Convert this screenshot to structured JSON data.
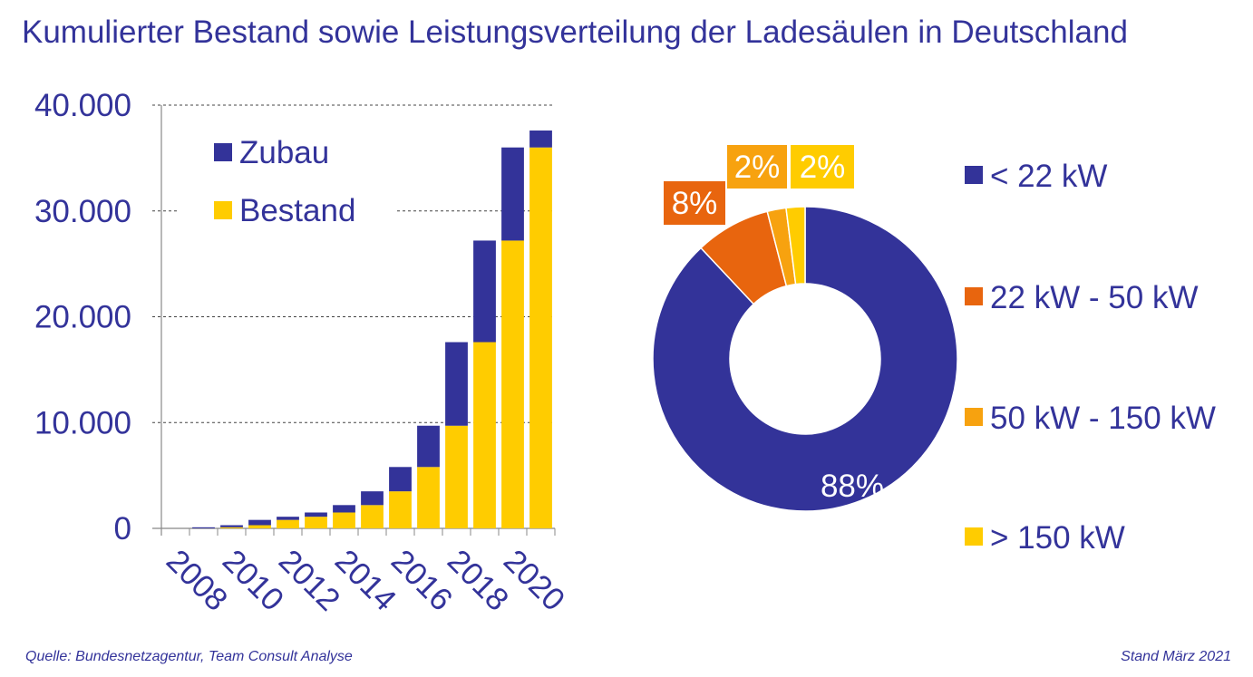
{
  "title": "Kumulierter Bestand sowie Leistungsverteilung der Ladesäulen in Deutschland",
  "footer": {
    "source": "Quelle: Bundesnetzagentur,  Team Consult Analyse",
    "date": "Stand März 2021"
  },
  "colors": {
    "text": "#33339a",
    "zubau": "#333399",
    "bestand": "#ffcc00",
    "orange_dark": "#e8650e",
    "orange": "#f7a20f",
    "yellow": "#ffcc00",
    "axis": "#888888"
  },
  "chart_data": [
    {
      "type": "bar",
      "stacked": true,
      "categories": [
        "2008",
        "2009",
        "2010",
        "2011",
        "2012",
        "2013",
        "2014",
        "2015",
        "2016",
        "2017",
        "2018",
        "2019",
        "2020",
        "2021"
      ],
      "xtick_labels": [
        "2008",
        "2010",
        "2012",
        "2014",
        "2016",
        "2018",
        "2020"
      ],
      "ytick_labels": [
        "0",
        "10.000",
        "20.000",
        "30.000",
        "40.000"
      ],
      "ylim": [
        0,
        40000
      ],
      "grid": "horizontal dashed",
      "legend_position": "top-left",
      "series": [
        {
          "name": "Bestand",
          "values": [
            0,
            0,
            100,
            300,
            800,
            1100,
            1500,
            2200,
            3500,
            5800,
            9700,
            17600,
            27200,
            36000
          ]
        },
        {
          "name": "Zubau",
          "values": [
            0,
            100,
            200,
            500,
            300,
            400,
            700,
            1300,
            2300,
            3900,
            7900,
            9600,
            8800,
            1600
          ]
        }
      ]
    },
    {
      "type": "pie",
      "donut": true,
      "legend_position": "right",
      "slices": [
        {
          "label": "< 22 kW",
          "value": 88,
          "display": "88%"
        },
        {
          "label": "22 kW - 50 kW",
          "value": 8,
          "display": "8%"
        },
        {
          "label": "50 kW - 150 kW",
          "value": 2,
          "display": "2%"
        },
        {
          "label": "> 150 kW",
          "value": 2,
          "display": "2%"
        }
      ]
    }
  ]
}
